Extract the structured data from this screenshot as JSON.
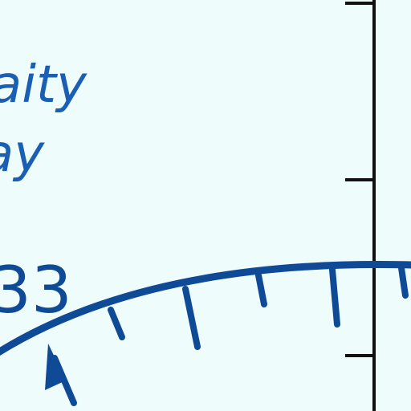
{
  "text": {
    "line1": "aity",
    "line2": "ay",
    "number": "33"
  },
  "colors": {
    "background": "#eefcfc",
    "text": "#1a5fb4",
    "dial": "#0f4a96",
    "axis": "#111111"
  },
  "icons": {
    "pointer": "arrow-up-icon"
  }
}
